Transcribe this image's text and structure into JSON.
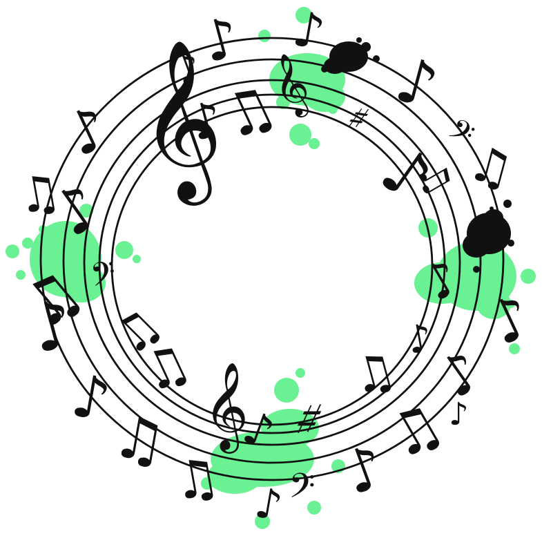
{
  "artwork": {
    "subject": "circular-music-staff",
    "colors": {
      "staff": "#111111",
      "notes": "#111111",
      "splash_green": "#5df08a",
      "splash_black": "#111111",
      "background": "#ffffff"
    },
    "icons": [
      "treble-clef-icon",
      "bass-clef-icon",
      "eighth-note-icon",
      "beamed-notes-icon",
      "sharp-icon",
      "ink-splash-icon"
    ]
  }
}
